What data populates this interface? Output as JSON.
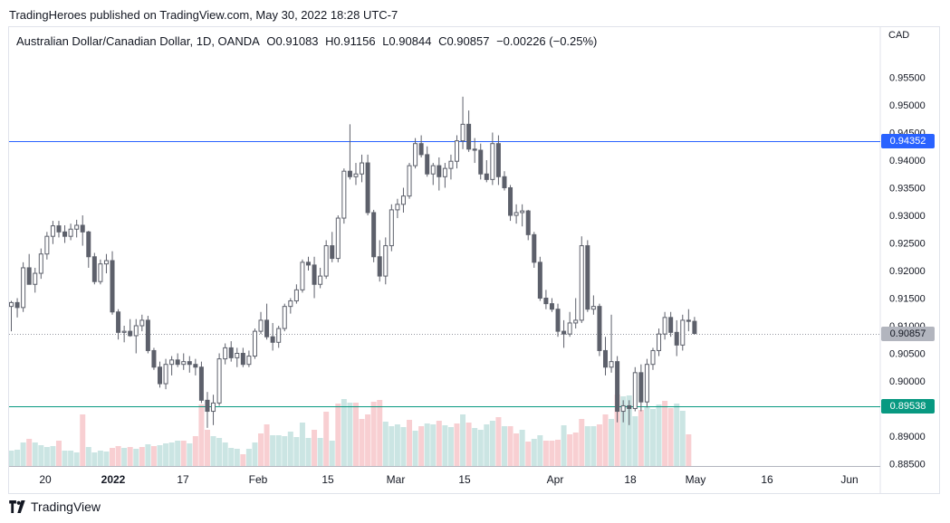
{
  "publisher_line": "TradingHeroes published on TradingView.com, May 30, 2022 18:28 UTC-7",
  "branding": {
    "name": "TradingView",
    "logo_icon": "tradingview-logo-icon"
  },
  "symbol_header": {
    "name": "Australian Dollar/Canadian Dollar, 1D, OANDA",
    "open": "O0.91083",
    "high": "H0.91156",
    "low": "L0.90844",
    "close": "C0.90857",
    "change": "−0.00226 (−0.25%)"
  },
  "chart_data": {
    "type": "candlestick",
    "currency_label": "CAD",
    "y_ticks": [
      "0.95500",
      "0.95000",
      "0.94500",
      "0.94000",
      "0.93500",
      "0.93000",
      "0.92500",
      "0.92000",
      "0.91500",
      "0.91000",
      "0.90500",
      "0.90000",
      "0.89500",
      "0.89000",
      "0.88500"
    ],
    "x_ticks": [
      "20",
      "2022",
      "17",
      "Feb",
      "15",
      "Mar",
      "15",
      "Apr",
      "18",
      "May",
      "16",
      "Jun"
    ],
    "ylim": [
      0.885,
      0.957
    ],
    "horizontal_lines": [
      {
        "value": 0.94352,
        "label": "0.94352",
        "color": "#2962ff"
      },
      {
        "value": 0.89538,
        "label": "0.89538",
        "color": "#089981"
      }
    ],
    "last_price": {
      "value": 0.90857,
      "label": "0.90857",
      "color": "#b2b5be"
    },
    "colors": {
      "up_body": "#ffffff",
      "down_body": "#5d606b",
      "wick": "#5d606b",
      "vol_up": "#cbe5e3",
      "vol_down": "#f8cfd2"
    },
    "candles": [
      [
        0.9135,
        0.9145,
        0.909,
        0.9142
      ],
      [
        0.9142,
        0.915,
        0.9115,
        0.9133
      ],
      [
        0.9133,
        0.9215,
        0.9125,
        0.9205
      ],
      [
        0.9205,
        0.923,
        0.9178,
        0.9175
      ],
      [
        0.9175,
        0.9205,
        0.916,
        0.9195
      ],
      [
        0.9195,
        0.924,
        0.9185,
        0.923
      ],
      [
        0.923,
        0.927,
        0.922,
        0.9262
      ],
      [
        0.9262,
        0.929,
        0.9248,
        0.9281
      ],
      [
        0.9281,
        0.929,
        0.926,
        0.927
      ],
      [
        0.927,
        0.9282,
        0.925,
        0.9262
      ],
      [
        0.9262,
        0.9285,
        0.9255,
        0.9275
      ],
      [
        0.9275,
        0.9292,
        0.926,
        0.9282
      ],
      [
        0.9282,
        0.93,
        0.9245,
        0.927
      ],
      [
        0.927,
        0.9272,
        0.9205,
        0.9225
      ],
      [
        0.9225,
        0.9232,
        0.9175,
        0.918
      ],
      [
        0.918,
        0.922,
        0.9175,
        0.9212
      ],
      [
        0.9212,
        0.923,
        0.9195,
        0.9218
      ],
      [
        0.9218,
        0.9235,
        0.912,
        0.9125
      ],
      [
        0.9125,
        0.913,
        0.9075,
        0.9088
      ],
      [
        0.9088,
        0.91,
        0.907,
        0.909
      ],
      [
        0.909,
        0.9112,
        0.908,
        0.9082
      ],
      [
        0.9082,
        0.9112,
        0.905,
        0.91
      ],
      [
        0.91,
        0.912,
        0.909,
        0.911
      ],
      [
        0.911,
        0.9118,
        0.905,
        0.9055
      ],
      [
        0.9055,
        0.906,
        0.902,
        0.9025
      ],
      [
        0.9025,
        0.9035,
        0.8988,
        0.8995
      ],
      [
        0.8995,
        0.904,
        0.8985,
        0.903
      ],
      [
        0.903,
        0.9045,
        0.901,
        0.9038
      ],
      [
        0.9038,
        0.905,
        0.9025,
        0.903
      ],
      [
        0.903,
        0.905,
        0.902,
        0.9035
      ],
      [
        0.9035,
        0.9045,
        0.9015,
        0.903
      ],
      [
        0.903,
        0.904,
        0.901,
        0.9025
      ],
      [
        0.9025,
        0.9035,
        0.896,
        0.8965
      ],
      [
        0.8965,
        0.898,
        0.8915,
        0.8945
      ],
      [
        0.8945,
        0.8975,
        0.892,
        0.896
      ],
      [
        0.896,
        0.905,
        0.8955,
        0.904
      ],
      [
        0.904,
        0.9068,
        0.903,
        0.906
      ],
      [
        0.906,
        0.9072,
        0.9035,
        0.9042
      ],
      [
        0.9042,
        0.906,
        0.9025,
        0.905
      ],
      [
        0.905,
        0.906,
        0.9025,
        0.903
      ],
      [
        0.903,
        0.9055,
        0.9025,
        0.9045
      ],
      [
        0.9045,
        0.9095,
        0.904,
        0.909
      ],
      [
        0.909,
        0.9125,
        0.9085,
        0.911
      ],
      [
        0.911,
        0.914,
        0.9075,
        0.908
      ],
      [
        0.908,
        0.9105,
        0.9055,
        0.907
      ],
      [
        0.907,
        0.91,
        0.906,
        0.9095
      ],
      [
        0.9095,
        0.914,
        0.909,
        0.9135
      ],
      [
        0.9135,
        0.915,
        0.9122,
        0.9145
      ],
      [
        0.9145,
        0.9175,
        0.914,
        0.9165
      ],
      [
        0.9165,
        0.922,
        0.916,
        0.9215
      ],
      [
        0.9215,
        0.9225,
        0.92,
        0.921
      ],
      [
        0.921,
        0.9225,
        0.915,
        0.9175
      ],
      [
        0.9175,
        0.9205,
        0.9168,
        0.919
      ],
      [
        0.919,
        0.9255,
        0.9185,
        0.9245
      ],
      [
        0.9245,
        0.927,
        0.9215,
        0.9222
      ],
      [
        0.9222,
        0.93,
        0.9215,
        0.9295
      ],
      [
        0.9295,
        0.9385,
        0.9285,
        0.938
      ],
      [
        0.938,
        0.9465,
        0.9365,
        0.937
      ],
      [
        0.937,
        0.9395,
        0.9355,
        0.9375
      ],
      [
        0.9375,
        0.941,
        0.936,
        0.9395
      ],
      [
        0.9395,
        0.941,
        0.93,
        0.9305
      ],
      [
        0.9305,
        0.931,
        0.9215,
        0.9225
      ],
      [
        0.9225,
        0.9255,
        0.918,
        0.919
      ],
      [
        0.919,
        0.926,
        0.9175,
        0.9245
      ],
      [
        0.9245,
        0.932,
        0.9235,
        0.931
      ],
      [
        0.931,
        0.933,
        0.9295,
        0.932
      ],
      [
        0.932,
        0.935,
        0.9305,
        0.9335
      ],
      [
        0.9335,
        0.9395,
        0.933,
        0.939
      ],
      [
        0.939,
        0.944,
        0.9385,
        0.943
      ],
      [
        0.943,
        0.9445,
        0.9405,
        0.941
      ],
      [
        0.941,
        0.9425,
        0.937,
        0.9375
      ],
      [
        0.9375,
        0.9395,
        0.9355,
        0.939
      ],
      [
        0.939,
        0.9405,
        0.9345,
        0.937
      ],
      [
        0.937,
        0.9395,
        0.935,
        0.9385
      ],
      [
        0.9385,
        0.941,
        0.9365,
        0.9398
      ],
      [
        0.9398,
        0.9445,
        0.9385,
        0.9435
      ],
      [
        0.9435,
        0.9515,
        0.942,
        0.9465
      ],
      [
        0.9465,
        0.949,
        0.9415,
        0.942
      ],
      [
        0.942,
        0.944,
        0.9395,
        0.9418
      ],
      [
        0.9418,
        0.943,
        0.9365,
        0.9375
      ],
      [
        0.9375,
        0.94,
        0.936,
        0.9365
      ],
      [
        0.9365,
        0.945,
        0.9355,
        0.943
      ],
      [
        0.943,
        0.9445,
        0.9355,
        0.937
      ],
      [
        0.937,
        0.938,
        0.9345,
        0.935
      ],
      [
        0.935,
        0.9355,
        0.929,
        0.93
      ],
      [
        0.93,
        0.932,
        0.9285,
        0.9305
      ],
      [
        0.9305,
        0.932,
        0.928,
        0.9308
      ],
      [
        0.9308,
        0.931,
        0.9255,
        0.9265
      ],
      [
        0.9265,
        0.927,
        0.9205,
        0.9215
      ],
      [
        0.9215,
        0.9225,
        0.9145,
        0.915
      ],
      [
        0.915,
        0.9165,
        0.913,
        0.914
      ],
      [
        0.914,
        0.915,
        0.9125,
        0.913
      ],
      [
        0.913,
        0.914,
        0.908,
        0.909
      ],
      [
        0.909,
        0.911,
        0.906,
        0.9085
      ],
      [
        0.9085,
        0.9125,
        0.908,
        0.9105
      ],
      [
        0.9105,
        0.915,
        0.9095,
        0.911
      ],
      [
        0.911,
        0.9262,
        0.9105,
        0.9245
      ],
      [
        0.9245,
        0.9255,
        0.9125,
        0.913
      ],
      [
        0.913,
        0.9155,
        0.912,
        0.9135
      ],
      [
        0.9135,
        0.914,
        0.9045,
        0.9055
      ],
      [
        0.9055,
        0.908,
        0.901,
        0.9025
      ],
      [
        0.9025,
        0.912,
        0.9015,
        0.9035
      ],
      [
        0.9035,
        0.9045,
        0.8925,
        0.8945
      ],
      [
        0.8945,
        0.8965,
        0.8925,
        0.8955
      ],
      [
        0.8955,
        0.8965,
        0.892,
        0.895
      ],
      [
        0.895,
        0.9025,
        0.8945,
        0.9015
      ],
      [
        0.9015,
        0.903,
        0.8945,
        0.8962
      ],
      [
        0.8962,
        0.904,
        0.8952,
        0.903
      ],
      [
        0.903,
        0.906,
        0.902,
        0.9055
      ],
      [
        0.9055,
        0.9095,
        0.9045,
        0.9085
      ],
      [
        0.9085,
        0.9125,
        0.9075,
        0.9115
      ],
      [
        0.9115,
        0.9125,
        0.908,
        0.9088
      ],
      [
        0.9088,
        0.911,
        0.9045,
        0.9065
      ],
      [
        0.9065,
        0.912,
        0.9055,
        0.911
      ],
      [
        0.911,
        0.913,
        0.909,
        0.9108
      ],
      [
        0.9108,
        0.9116,
        0.9084,
        0.9086
      ]
    ],
    "volumes": [
      [
        17,
        1
      ],
      [
        18,
        1
      ],
      [
        26,
        1
      ],
      [
        30,
        0
      ],
      [
        26,
        1
      ],
      [
        23,
        1
      ],
      [
        21,
        1
      ],
      [
        22,
        1
      ],
      [
        28,
        0
      ],
      [
        17,
        1
      ],
      [
        17,
        1
      ],
      [
        15,
        1
      ],
      [
        57,
        0
      ],
      [
        21,
        1
      ],
      [
        15,
        1
      ],
      [
        17,
        1
      ],
      [
        16,
        1
      ],
      [
        20,
        0
      ],
      [
        22,
        0
      ],
      [
        20,
        1
      ],
      [
        21,
        0
      ],
      [
        19,
        1
      ],
      [
        21,
        0
      ],
      [
        24,
        1
      ],
      [
        22,
        0
      ],
      [
        23,
        1
      ],
      [
        25,
        1
      ],
      [
        26,
        1
      ],
      [
        28,
        1
      ],
      [
        28,
        0
      ],
      [
        25,
        1
      ],
      [
        33,
        0
      ],
      [
        68,
        0
      ],
      [
        40,
        0
      ],
      [
        33,
        1
      ],
      [
        31,
        1
      ],
      [
        26,
        1
      ],
      [
        20,
        1
      ],
      [
        19,
        1
      ],
      [
        13,
        0
      ],
      [
        19,
        1
      ],
      [
        26,
        1
      ],
      [
        36,
        0
      ],
      [
        46,
        0
      ],
      [
        34,
        1
      ],
      [
        34,
        1
      ],
      [
        33,
        1
      ],
      [
        38,
        1
      ],
      [
        32,
        1
      ],
      [
        48,
        1
      ],
      [
        31,
        1
      ],
      [
        40,
        0
      ],
      [
        31,
        1
      ],
      [
        60,
        0
      ],
      [
        28,
        1
      ],
      [
        69,
        0
      ],
      [
        74,
        1
      ],
      [
        70,
        1
      ],
      [
        70,
        0
      ],
      [
        52,
        0
      ],
      [
        57,
        0
      ],
      [
        71,
        0
      ],
      [
        73,
        0
      ],
      [
        49,
        1
      ],
      [
        44,
        1
      ],
      [
        46,
        1
      ],
      [
        43,
        1
      ],
      [
        51,
        0
      ],
      [
        39,
        1
      ],
      [
        44,
        0
      ],
      [
        47,
        1
      ],
      [
        46,
        1
      ],
      [
        50,
        0
      ],
      [
        45,
        1
      ],
      [
        43,
        1
      ],
      [
        47,
        0
      ],
      [
        57,
        1
      ],
      [
        48,
        0
      ],
      [
        42,
        1
      ],
      [
        40,
        1
      ],
      [
        46,
        1
      ],
      [
        50,
        1
      ],
      [
        54,
        0
      ],
      [
        44,
        1
      ],
      [
        44,
        0
      ],
      [
        36,
        0
      ],
      [
        40,
        1
      ],
      [
        27,
        0
      ],
      [
        30,
        1
      ],
      [
        34,
        1
      ],
      [
        28,
        0
      ],
      [
        28,
        0
      ],
      [
        29,
        0
      ],
      [
        45,
        1
      ],
      [
        35,
        0
      ],
      [
        37,
        0
      ],
      [
        52,
        0
      ],
      [
        44,
        1
      ],
      [
        44,
        1
      ],
      [
        46,
        0
      ],
      [
        57,
        0
      ],
      [
        52,
        1
      ],
      [
        79,
        0
      ],
      [
        77,
        1
      ],
      [
        78,
        1
      ],
      [
        55,
        1
      ],
      [
        62,
        0
      ],
      [
        65,
        1
      ],
      [
        63,
        1
      ],
      [
        68,
        1
      ],
      [
        72,
        0
      ],
      [
        64,
        0
      ],
      [
        69,
        1
      ],
      [
        61,
        1
      ],
      [
        35,
        0
      ]
    ]
  }
}
